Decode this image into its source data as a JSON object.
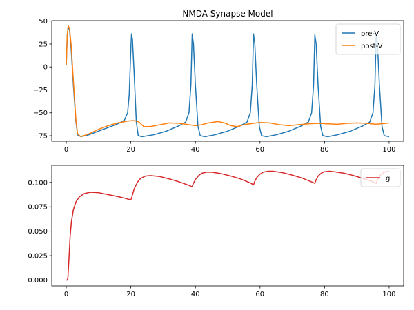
{
  "chart_data": [
    {
      "type": "line",
      "title": "NMDA Synapse Model",
      "xlabel": "",
      "ylabel": "",
      "xlim": [
        -4.5,
        104.5
      ],
      "ylim": [
        -81,
        50.5
      ],
      "xticks": [
        0,
        20,
        40,
        60,
        80,
        100
      ],
      "yticks": [
        50,
        25,
        0,
        -25,
        -50,
        -75
      ],
      "grid": false,
      "legend_position": "top-right",
      "series": [
        {
          "name": "pre-V",
          "color": "#1f77b4",
          "points": [
            [
              0,
              2
            ],
            [
              0.3,
              35
            ],
            [
              0.6,
              44
            ],
            [
              1,
              40
            ],
            [
              1.5,
              20
            ],
            [
              2.2,
              -20
            ],
            [
              3,
              -60
            ],
            [
              3.5,
              -74
            ],
            [
              4.5,
              -76
            ],
            [
              7,
              -74
            ],
            [
              10,
              -70
            ],
            [
              13,
              -66
            ],
            [
              16,
              -62
            ],
            [
              18,
              -58
            ],
            [
              19,
              -50
            ],
            [
              19.5,
              -30
            ],
            [
              20,
              20
            ],
            [
              20.2,
              36
            ],
            [
              20.5,
              30
            ],
            [
              21,
              -5
            ],
            [
              21.7,
              -60
            ],
            [
              22.3,
              -75
            ],
            [
              23.5,
              -76
            ],
            [
              27,
              -74
            ],
            [
              31,
              -70
            ],
            [
              35,
              -64
            ],
            [
              37,
              -60
            ],
            [
              38,
              -50
            ],
            [
              38.6,
              -20
            ],
            [
              39,
              36
            ],
            [
              39.4,
              25
            ],
            [
              40,
              -20
            ],
            [
              40.8,
              -65
            ],
            [
              41.5,
              -75
            ],
            [
              43,
              -76
            ],
            [
              46,
              -74
            ],
            [
              50,
              -70
            ],
            [
              54,
              -64
            ],
            [
              56,
              -60
            ],
            [
              57,
              -50
            ],
            [
              57.6,
              -20
            ],
            [
              58,
              36
            ],
            [
              58.4,
              25
            ],
            [
              59,
              -20
            ],
            [
              59.8,
              -65
            ],
            [
              60.5,
              -75
            ],
            [
              62,
              -76
            ],
            [
              65,
              -74
            ],
            [
              69,
              -70
            ],
            [
              73,
              -64
            ],
            [
              75,
              -60
            ],
            [
              76,
              -50
            ],
            [
              76.6,
              -20
            ],
            [
              77,
              35
            ],
            [
              77.4,
              25
            ],
            [
              78,
              -20
            ],
            [
              78.8,
              -65
            ],
            [
              79.5,
              -75
            ],
            [
              81,
              -76
            ],
            [
              84,
              -74
            ],
            [
              88,
              -70
            ],
            [
              92,
              -64
            ],
            [
              94,
              -60
            ],
            [
              95,
              -50
            ],
            [
              95.6,
              -20
            ],
            [
              96,
              36
            ],
            [
              96.4,
              25
            ],
            [
              97,
              -20
            ],
            [
              97.8,
              -65
            ],
            [
              98.5,
              -75
            ],
            [
              100,
              -76
            ]
          ]
        },
        {
          "name": "post-V",
          "color": "#ff7f0e",
          "points": [
            [
              0,
              2
            ],
            [
              0.3,
              35
            ],
            [
              0.6,
              45
            ],
            [
              1,
              42
            ],
            [
              1.5,
              25
            ],
            [
              2.2,
              -15
            ],
            [
              3,
              -58
            ],
            [
              3.5,
              -73
            ],
            [
              4.5,
              -76
            ],
            [
              7,
              -73
            ],
            [
              10,
              -68
            ],
            [
              13,
              -64
            ],
            [
              16,
              -61
            ],
            [
              19,
              -59
            ],
            [
              21,
              -58.5
            ],
            [
              22.5,
              -60
            ],
            [
              24,
              -65
            ],
            [
              26,
              -65
            ],
            [
              29,
              -63
            ],
            [
              32,
              -61
            ],
            [
              35,
              -61.5
            ],
            [
              38,
              -63
            ],
            [
              40,
              -64
            ],
            [
              42,
              -63
            ],
            [
              44,
              -61
            ],
            [
              47,
              -59.5
            ],
            [
              49,
              -61
            ],
            [
              51,
              -64
            ],
            [
              53,
              -65
            ],
            [
              55,
              -63
            ],
            [
              58,
              -61.5
            ],
            [
              60,
              -60.5
            ],
            [
              63,
              -61
            ],
            [
              66,
              -63
            ],
            [
              69,
              -64
            ],
            [
              72,
              -63
            ],
            [
              75,
              -62
            ],
            [
              78,
              -61.5
            ],
            [
              81,
              -62
            ],
            [
              84,
              -62.5
            ],
            [
              87,
              -61.5
            ],
            [
              90,
              -61
            ],
            [
              93,
              -61.5
            ],
            [
              96,
              -62.5
            ],
            [
              99,
              -61.5
            ],
            [
              100,
              -61
            ]
          ]
        }
      ]
    },
    {
      "type": "line",
      "title": "",
      "xlabel": "",
      "ylabel": "",
      "xlim": [
        -4.5,
        104.5
      ],
      "ylim": [
        -0.006,
        0.1175
      ],
      "xticks": [
        0,
        20,
        40,
        60,
        80,
        100
      ],
      "yticks": [
        0.1,
        0.075,
        0.05,
        0.025,
        0
      ],
      "ytick_labels": [
        "0.100",
        "0.075",
        "0.050",
        "0.025",
        "0.000"
      ],
      "grid": false,
      "legend_position": "top-right",
      "series": [
        {
          "name": "g",
          "color": "#d62728",
          "points": [
            [
              0,
              0
            ],
            [
              0.3,
              0
            ],
            [
              0.5,
              0.002
            ],
            [
              0.8,
              0.02
            ],
            [
              1.2,
              0.045
            ],
            [
              1.6,
              0.06
            ],
            [
              2.2,
              0.072
            ],
            [
              3,
              0.08
            ],
            [
              4,
              0.085
            ],
            [
              5.5,
              0.0885
            ],
            [
              7.5,
              0.09
            ],
            [
              10,
              0.0895
            ],
            [
              13,
              0.0875
            ],
            [
              16,
              0.0855
            ],
            [
              18.5,
              0.0835
            ],
            [
              20,
              0.082
            ],
            [
              20.3,
              0.085
            ],
            [
              21,
              0.093
            ],
            [
              22,
              0.1
            ],
            [
              23,
              0.104
            ],
            [
              24.5,
              0.1065
            ],
            [
              26,
              0.107
            ],
            [
              29,
              0.106
            ],
            [
              32,
              0.1035
            ],
            [
              35,
              0.1005
            ],
            [
              38,
              0.097
            ],
            [
              39,
              0.0955
            ],
            [
              39.3,
              0.0985
            ],
            [
              40,
              0.103
            ],
            [
              41,
              0.107
            ],
            [
              42,
              0.1095
            ],
            [
              43.5,
              0.1105
            ],
            [
              45,
              0.1105
            ],
            [
              48,
              0.109
            ],
            [
              51,
              0.1065
            ],
            [
              54,
              0.1035
            ],
            [
              57,
              0.0995
            ],
            [
              58,
              0.0975
            ],
            [
              58.3,
              0.1005
            ],
            [
              59,
              0.105
            ],
            [
              60,
              0.1085
            ],
            [
              61,
              0.1105
            ],
            [
              62.5,
              0.1115
            ],
            [
              64,
              0.1115
            ],
            [
              67,
              0.11
            ],
            [
              70,
              0.1075
            ],
            [
              73,
              0.1045
            ],
            [
              76,
              0.1005
            ],
            [
              77,
              0.099
            ],
            [
              77.3,
              0.102
            ],
            [
              78,
              0.1065
            ],
            [
              79,
              0.1095
            ],
            [
              80,
              0.111
            ],
            [
              81.5,
              0.1115
            ],
            [
              83,
              0.111
            ],
            [
              86,
              0.1095
            ],
            [
              89,
              0.107
            ],
            [
              92,
              0.104
            ],
            [
              95,
              0.1005
            ],
            [
              96,
              0.099
            ],
            [
              96.3,
              0.102
            ],
            [
              97,
              0.1065
            ],
            [
              98,
              0.1095
            ],
            [
              99,
              0.111
            ],
            [
              100,
              0.1115
            ]
          ]
        }
      ]
    }
  ]
}
